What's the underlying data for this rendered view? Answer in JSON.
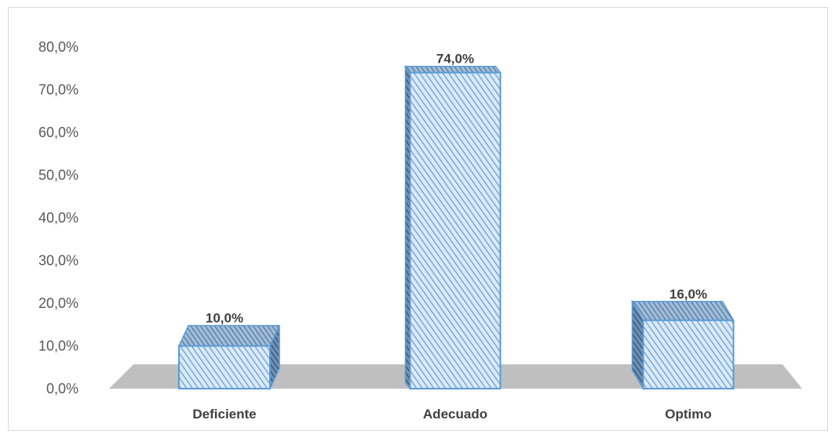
{
  "chart_data": {
    "type": "bar",
    "categories": [
      "Deficiente",
      "Adecuado",
      "Optimo"
    ],
    "values": [
      10.0,
      74.0,
      16.0
    ],
    "data_labels": [
      "10,0%",
      "74,0%",
      "16,0%"
    ],
    "ylim": [
      0,
      80
    ],
    "yticks": [
      "0,0%",
      "10,0%",
      "20,0%",
      "30,0%",
      "40,0%",
      "50,0%",
      "60,0%",
      "70,0%",
      "80,0%"
    ],
    "grid": false,
    "legend": "none",
    "style": "3d-bar",
    "colors": {
      "bar_fill": "#dce9f7",
      "bar_hatch": "#5b9bd5",
      "bar_stroke": "#5b9bd5",
      "floor": "#bfbfbf"
    }
  }
}
